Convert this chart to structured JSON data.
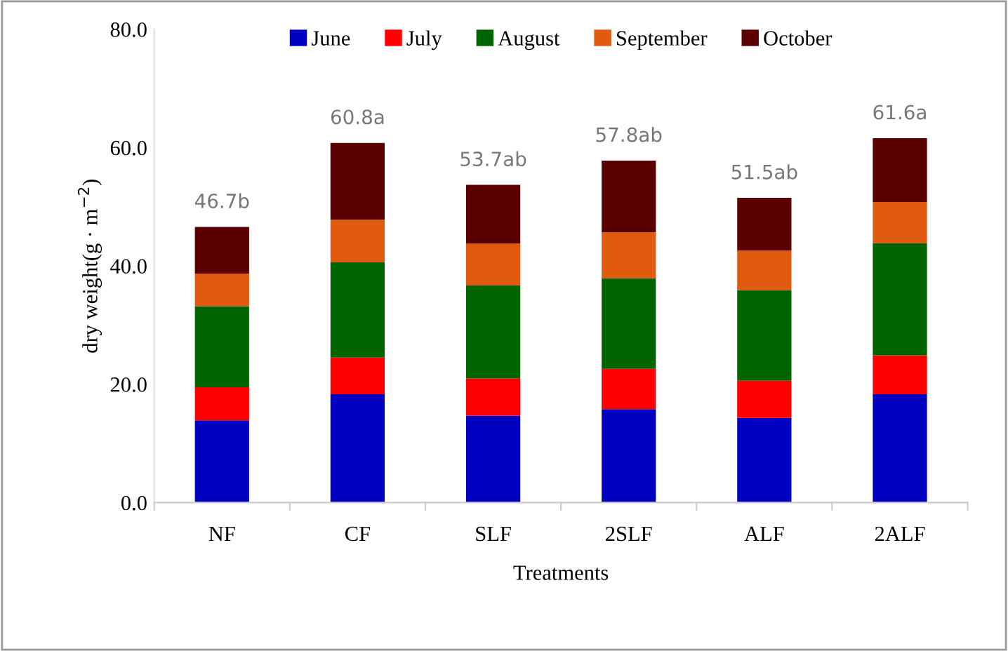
{
  "chart_data": {
    "type": "bar",
    "stacked": true,
    "xlabel": "Treatments",
    "ylabel": "dry weight(g · m$^{−2}$)",
    "categories": [
      "NF",
      "CF",
      "SLF",
      "2SLF",
      "ALF",
      "2ALF"
    ],
    "series": [
      {
        "name": "June",
        "color": "#0000c0",
        "values": [
          13.9,
          18.3,
          14.7,
          15.8,
          14.3,
          18.3
        ]
      },
      {
        "name": "July",
        "color": "#ff0000",
        "values": [
          5.6,
          6.2,
          6.3,
          6.8,
          6.3,
          6.6
        ]
      },
      {
        "name": "August",
        "color": "#006400",
        "values": [
          13.7,
          16.1,
          15.7,
          15.3,
          15.3,
          18.9
        ]
      },
      {
        "name": "September",
        "color": "#e05a10",
        "values": [
          5.5,
          7.2,
          7.1,
          7.8,
          6.7,
          7.0
        ]
      },
      {
        "name": "October",
        "color": "#5a0000",
        "values": [
          7.9,
          13.0,
          9.9,
          12.1,
          8.9,
          10.8
        ]
      }
    ],
    "totals": [
      "46.7b",
      "60.8a",
      "53.7ab",
      "57.8ab",
      "51.5ab",
      "61.6a"
    ],
    "ylim": [
      0,
      80
    ],
    "yticks": [
      {
        "value": 0,
        "label": "0.0"
      },
      {
        "value": 20,
        "label": "20.0"
      },
      {
        "value": 40,
        "label": "40.0"
      },
      {
        "value": 60,
        "label": "60.0"
      },
      {
        "value": 80,
        "label": "80.0"
      }
    ],
    "legend": "top",
    "grid": false
  }
}
